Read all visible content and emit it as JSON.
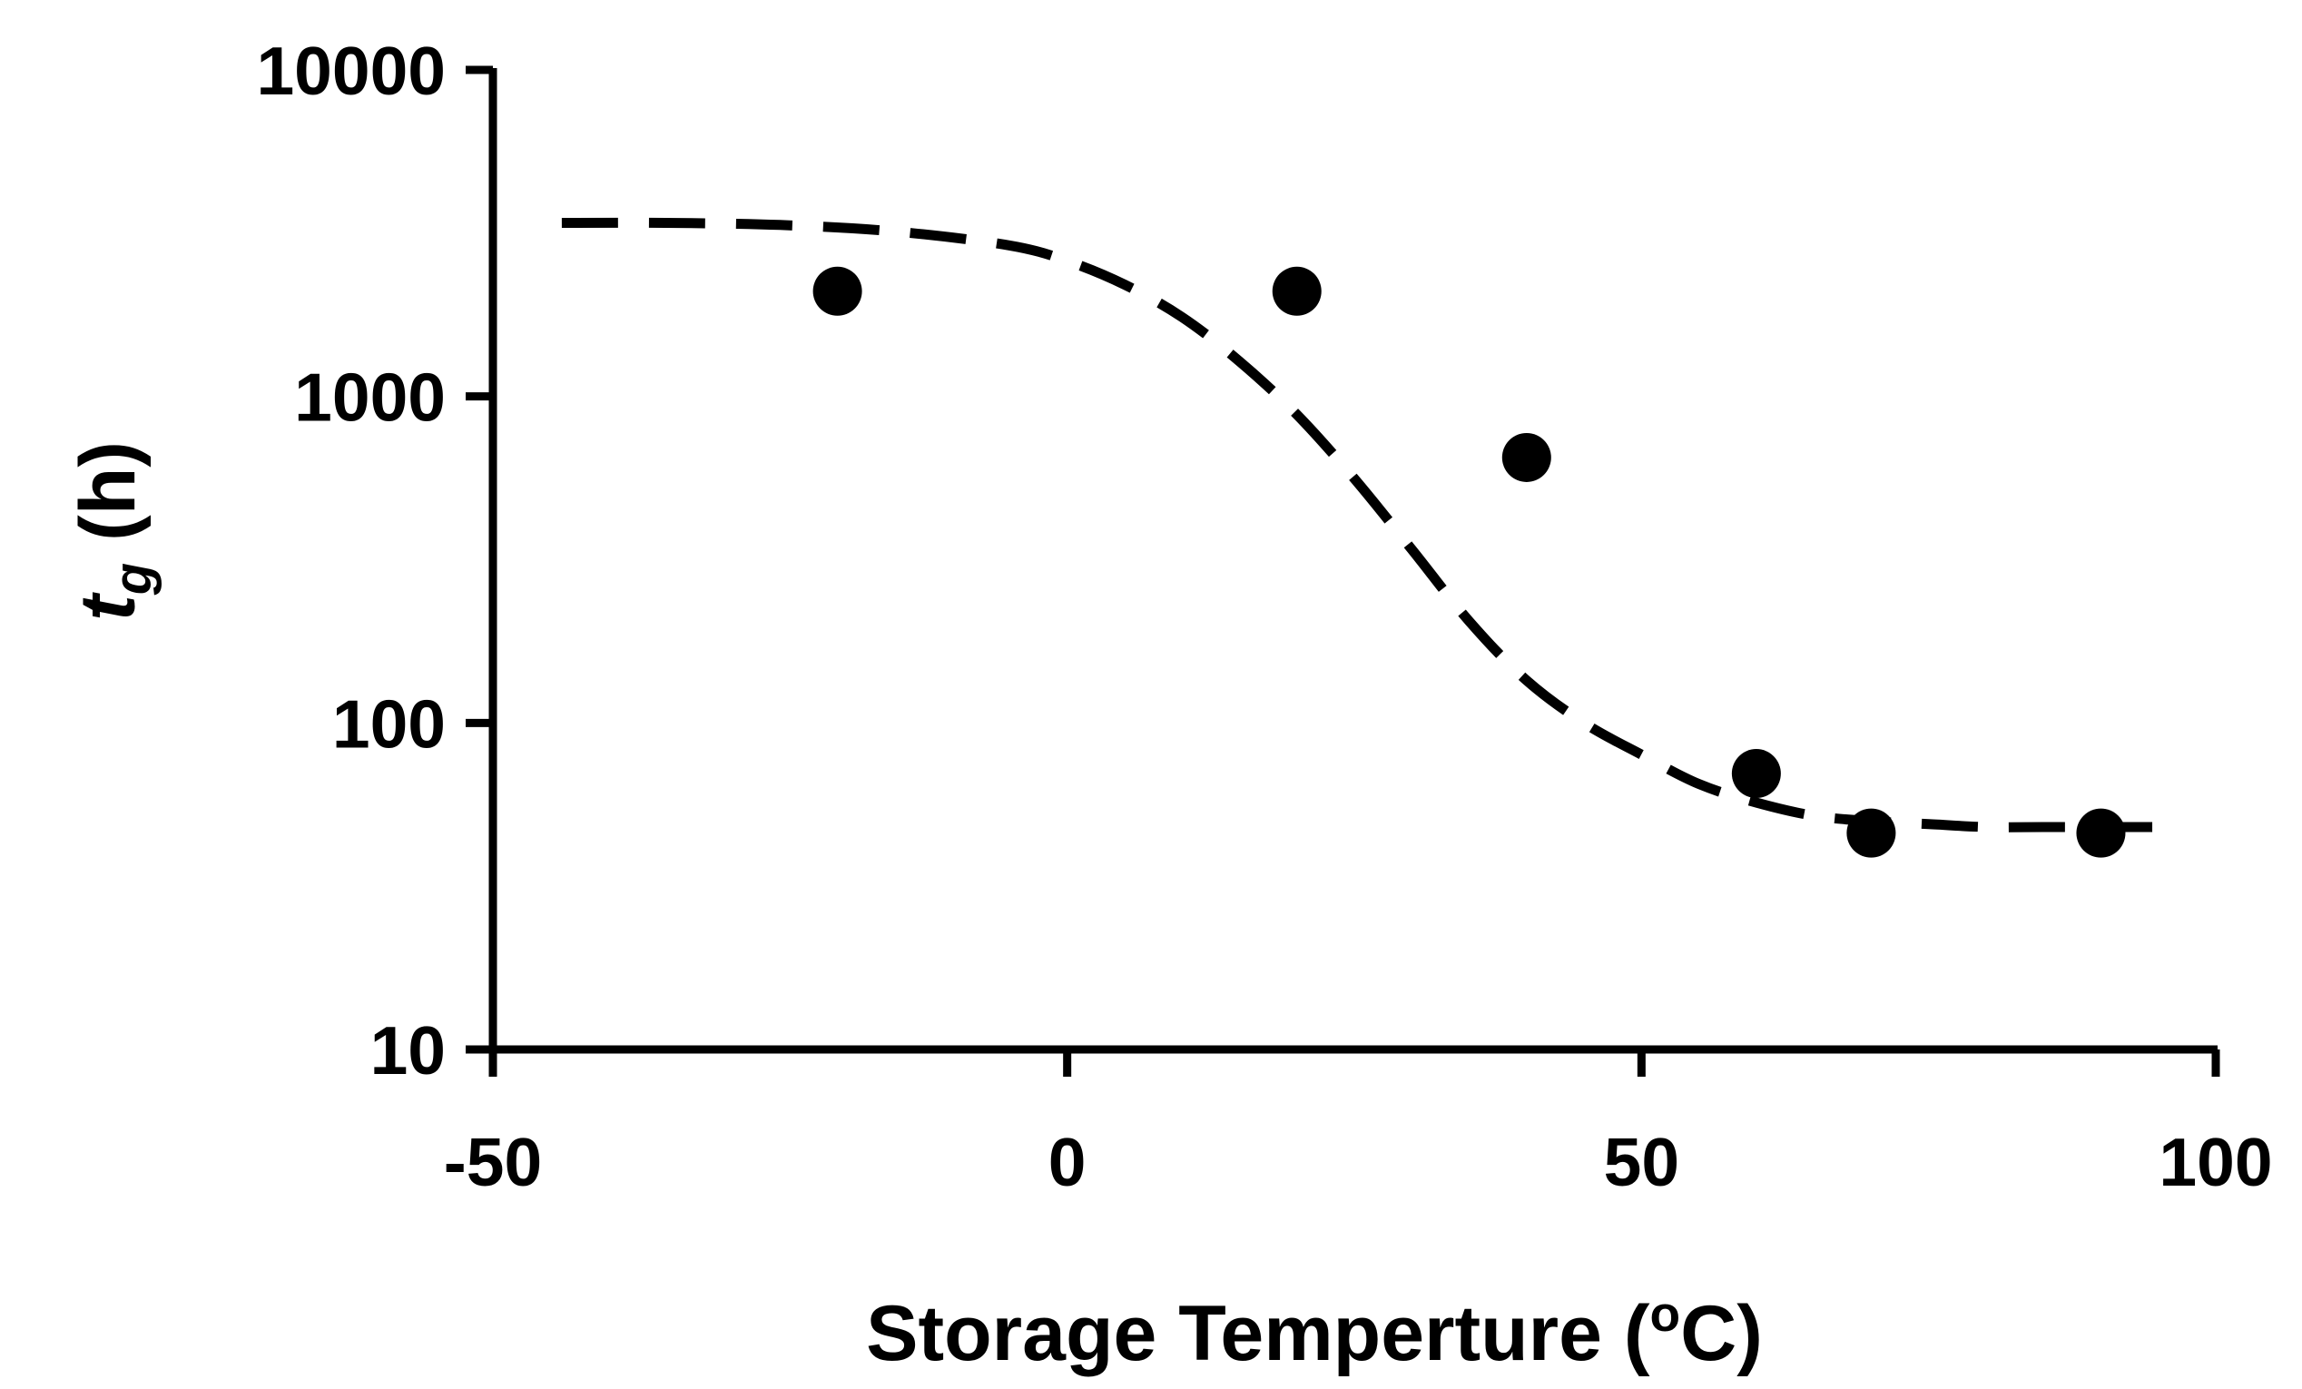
{
  "chart_data": {
    "type": "scatter",
    "title": "",
    "xlabel": "Storage Temperture (",
    "xlabel_sup": "o",
    "xlabel_end": "C)",
    "ylabel_main": "t",
    "ylabel_sub": "g",
    "ylabel_rest": " (h)",
    "xlim": [
      -50,
      100
    ],
    "ylim": [
      10,
      10000
    ],
    "y_scale": "log",
    "grid": false,
    "x_ticks": [
      "-50",
      "0",
      "50",
      "100"
    ],
    "y_ticks": [
      "10",
      "100",
      "1000",
      "10000"
    ],
    "series": [
      {
        "kind": "points",
        "marker": "filled-circle",
        "color": "#000000",
        "x": [
          -20,
          20,
          40,
          60,
          70,
          90
        ],
        "y": [
          2100,
          2100,
          650,
          70,
          46,
          46
        ]
      },
      {
        "kind": "fit-line",
        "style": "dashed",
        "color": "#000000",
        "x": [
          -44,
          -35,
          -25,
          -15,
          -5,
          0,
          5,
          10,
          15,
          20,
          25,
          30,
          35,
          40,
          45,
          50,
          55,
          60,
          65,
          70,
          75,
          80,
          85,
          90,
          96
        ],
        "y": [
          3400,
          3400,
          3350,
          3200,
          2900,
          2600,
          2200,
          1750,
          1280,
          880,
          560,
          340,
          205,
          135,
          100,
          80,
          65,
          57,
          52,
          50,
          49,
          48,
          48,
          48,
          48
        ]
      }
    ]
  }
}
